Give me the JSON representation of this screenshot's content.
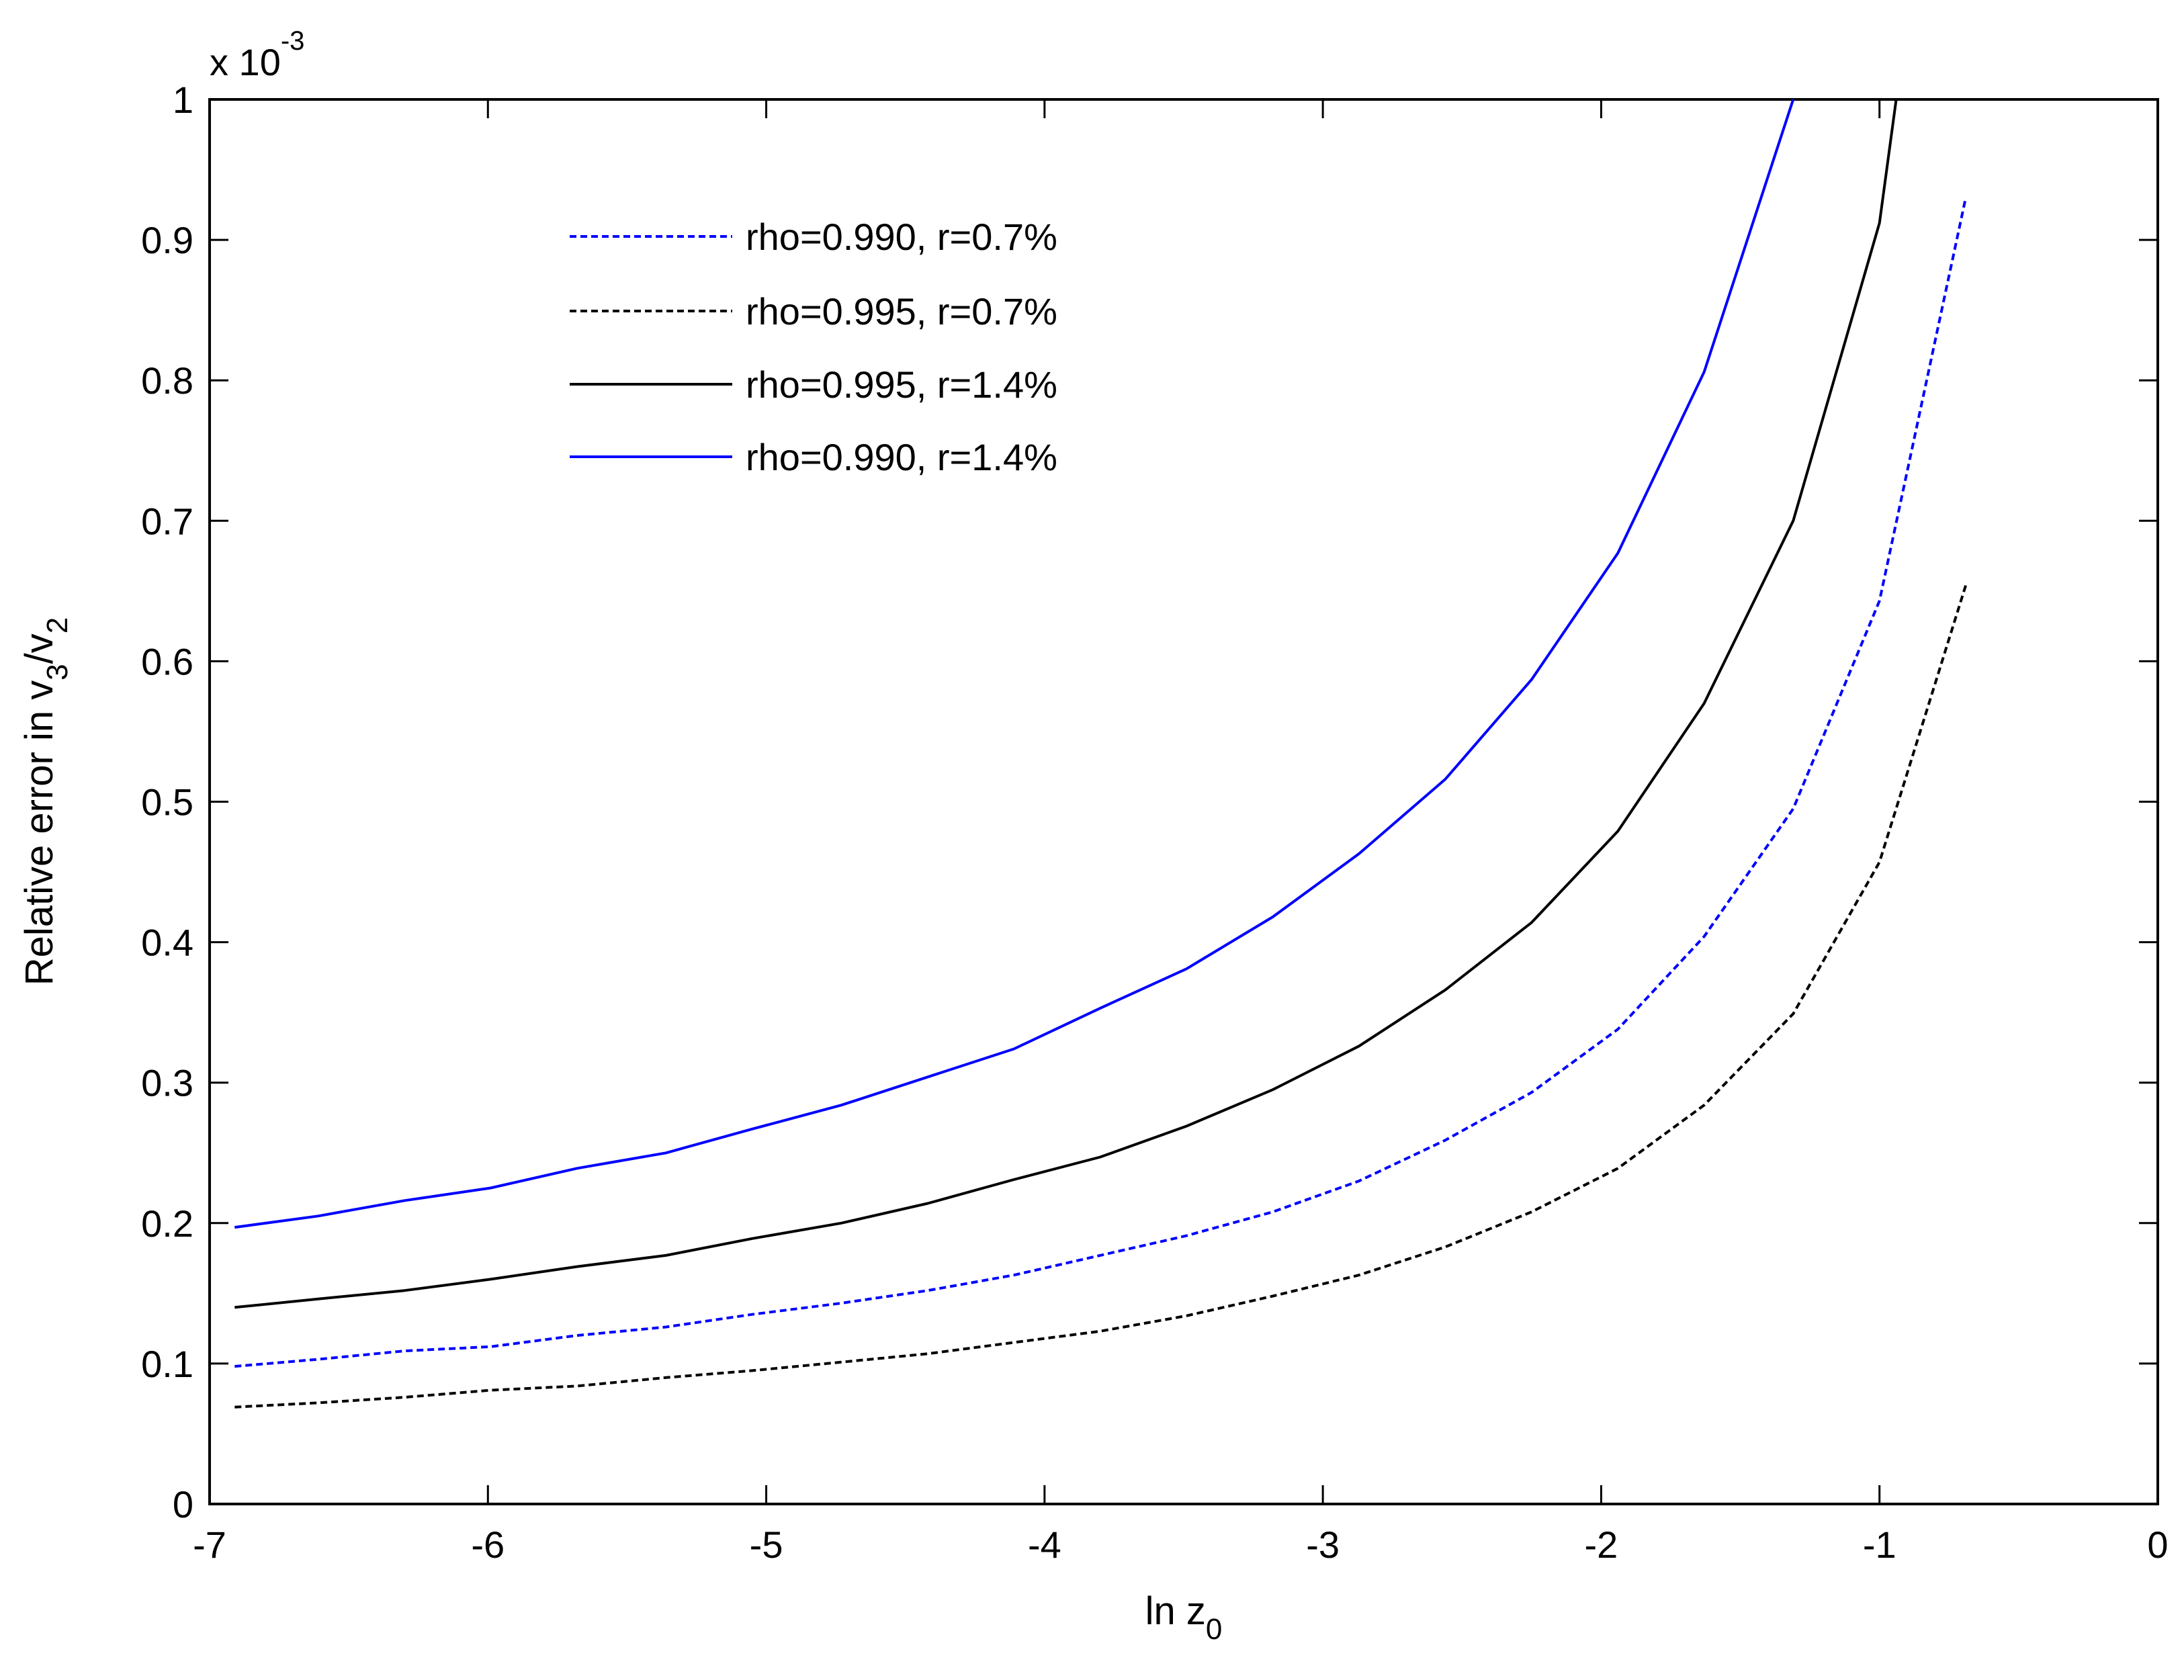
{
  "chart_data": {
    "type": "line",
    "xlabel": "ln z",
    "xlabel_sub": "0",
    "ylabel_parts": [
      "Relative error in v",
      "3",
      "/v",
      "2"
    ],
    "y_multiplier_base": "x 10",
    "y_multiplier_exp": "-3",
    "xlim": [
      -7,
      0
    ],
    "ylim": [
      0,
      1
    ],
    "xticks": [
      -7,
      -6,
      -5,
      -4,
      -3,
      -2,
      -1,
      0
    ],
    "xtick_labels": [
      "-7",
      "-6",
      "-5",
      "-4",
      "-3",
      "-2",
      "-1",
      "0"
    ],
    "yticks": [
      0,
      0.1,
      0.2,
      0.3,
      0.4,
      0.5,
      0.6,
      0.7,
      0.8,
      0.9,
      1
    ],
    "ytick_labels": [
      "0",
      "0.1",
      "0.2",
      "0.3",
      "0.4",
      "0.5",
      "0.6",
      "0.7",
      "0.8",
      "0.9",
      "1"
    ],
    "grid": false,
    "legend_position": "top-left",
    "series": [
      {
        "name": "rho=0.990, r=0.7%",
        "color": "#0000ff",
        "style": "dashed",
        "x": [
          -6.91,
          -6.61,
          -6.3,
          -5.99,
          -5.68,
          -5.36,
          -5.05,
          -4.73,
          -4.42,
          -4.11,
          -3.8,
          -3.49,
          -3.18,
          -2.87,
          -2.56,
          -2.25,
          -1.94,
          -1.63,
          -1.31,
          -1.0,
          -0.69
        ],
        "y": [
          0.098,
          0.103,
          0.109,
          0.112,
          0.12,
          0.126,
          0.135,
          0.143,
          0.152,
          0.163,
          0.177,
          0.191,
          0.208,
          0.23,
          0.259,
          0.293,
          0.338,
          0.404,
          0.495,
          0.643,
          0.93
        ]
      },
      {
        "name": "rho=0.995, r=0.7%",
        "color": "#000000",
        "style": "dashed",
        "x": [
          -6.91,
          -6.61,
          -6.3,
          -5.99,
          -5.68,
          -5.36,
          -5.05,
          -4.73,
          -4.42,
          -4.11,
          -3.8,
          -3.49,
          -3.18,
          -2.87,
          -2.56,
          -2.25,
          -1.94,
          -1.63,
          -1.31,
          -1.0,
          -0.69
        ],
        "y": [
          0.069,
          0.072,
          0.076,
          0.081,
          0.084,
          0.09,
          0.095,
          0.101,
          0.107,
          0.115,
          0.123,
          0.134,
          0.148,
          0.163,
          0.183,
          0.208,
          0.239,
          0.284,
          0.349,
          0.457,
          0.654
        ]
      },
      {
        "name": "rho=0.995, r=1.4%",
        "color": "#000000",
        "style": "solid",
        "x": [
          -6.91,
          -6.61,
          -6.3,
          -5.99,
          -5.68,
          -5.36,
          -5.05,
          -4.73,
          -4.42,
          -4.11,
          -3.8,
          -3.49,
          -3.18,
          -2.87,
          -2.56,
          -2.25,
          -1.94,
          -1.63,
          -1.31,
          -1.0,
          -0.94
        ],
        "y": [
          0.14,
          0.146,
          0.152,
          0.16,
          0.169,
          0.177,
          0.189,
          0.2,
          0.214,
          0.231,
          0.247,
          0.269,
          0.295,
          0.326,
          0.366,
          0.414,
          0.479,
          0.57,
          0.7,
          0.912,
          1.0
        ]
      },
      {
        "name": "rho=0.990, r=1.4%",
        "color": "#0000ff",
        "style": "solid",
        "x": [
          -6.91,
          -6.61,
          -6.3,
          -5.99,
          -5.68,
          -5.36,
          -5.05,
          -4.73,
          -4.42,
          -4.11,
          -3.8,
          -3.49,
          -3.18,
          -2.87,
          -2.56,
          -2.25,
          -1.94,
          -1.63,
          -1.31
        ],
        "y": [
          0.197,
          0.205,
          0.216,
          0.225,
          0.239,
          0.25,
          0.267,
          0.284,
          0.304,
          0.324,
          0.353,
          0.381,
          0.418,
          0.463,
          0.516,
          0.587,
          0.677,
          0.806,
          1.0
        ]
      }
    ]
  }
}
